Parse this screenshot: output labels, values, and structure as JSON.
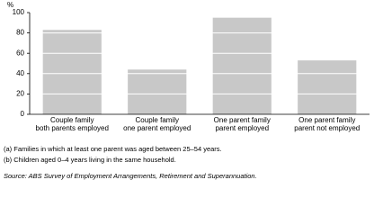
{
  "chart_data": {
    "type": "bar",
    "y_label": "%",
    "categories": [
      [
        "Couple family",
        "both parents employed"
      ],
      [
        "Couple family",
        "one parent employed"
      ],
      [
        "One parent family",
        "parent employed"
      ],
      [
        "One parent family",
        "parent not employed"
      ]
    ],
    "values": [
      83,
      44,
      95,
      53
    ],
    "color": "#c8c8c8",
    "ylim": [
      0,
      100
    ],
    "yticks": [
      0,
      20,
      40,
      60,
      80,
      100
    ],
    "grid": true,
    "notes": [
      "(a) Families in which at least one parent was aged between 25–54 years.",
      "(b) Children aged 0–4 years living in the same household."
    ],
    "source": "Source: ABS Survey of Employment Arrangements, Retirement and Superannuation."
  }
}
